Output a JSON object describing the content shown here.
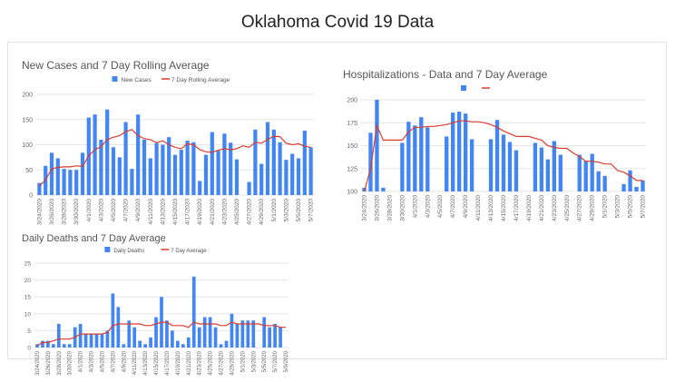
{
  "page": {
    "title": "Oklahoma Covid 19 Data"
  },
  "colors": {
    "bar": "#4285f4",
    "line": "#db3b2e",
    "grid": "#e6e6e6",
    "text": "#555555"
  },
  "chart_data": [
    {
      "id": "cases",
      "type": "bar",
      "title": "New Cases and 7 Day Rolling Average",
      "legend_position": "top",
      "ylim": [
        0,
        200
      ],
      "yticks": [
        0,
        50,
        100,
        150,
        200
      ],
      "grid": true,
      "x": [
        "3/24/2020",
        "3/25/2020",
        "3/26/2020",
        "3/27/2020",
        "3/28/2020",
        "3/29/2020",
        "3/30/2020",
        "3/31/2020",
        "4/1/2020",
        "4/2/2020",
        "4/3/2020",
        "4/4/2020",
        "4/5/2020",
        "4/6/2020",
        "4/7/2020",
        "4/8/2020",
        "4/9/2020",
        "4/10/2020",
        "4/11/2020",
        "4/12/2020",
        "4/13/2020",
        "4/14/2020",
        "4/15/2020",
        "4/16/2020",
        "4/17/2020",
        "4/18/2020",
        "4/19/2020",
        "4/20/2020",
        "4/21/2020",
        "4/22/2020",
        "4/23/2020",
        "4/24/2020",
        "4/25/2020",
        "4/26/2020",
        "4/27/2020",
        "4/28/2020",
        "4/29/2020",
        "4/30/2020",
        "5/1/2020",
        "5/2/2020",
        "5/3/2020",
        "5/4/2020",
        "5/5/2020",
        "5/6/2020",
        "5/7/2020"
      ],
      "tick_labels": [
        "3/24/2020",
        "3/26/2020",
        "3/28/2020",
        "3/30/2020",
        "4/1/2020",
        "4/3/2020",
        "4/5/2020",
        "4/7/2020",
        "4/9/2020",
        "4/11/2020",
        "4/13/2020",
        "4/15/2020",
        "4/17/2020",
        "4/19/2020",
        "4/21/2020",
        "4/23/2020",
        "4/25/2020",
        "4/27/2020",
        "4/29/2020",
        "5/1/2020",
        "5/3/2020",
        "5/5/2020",
        "5/7/2020"
      ],
      "series": [
        {
          "name": "New Cases",
          "type": "bar",
          "values": [
            24,
            58,
            84,
            73,
            52,
            50,
            50,
            84,
            154,
            160,
            110,
            170,
            95,
            75,
            145,
            52,
            160,
            110,
            73,
            103,
            100,
            115,
            80,
            90,
            108,
            105,
            28,
            80,
            125,
            88,
            122,
            104,
            71,
            null,
            26,
            130,
            62,
            145,
            130,
            105,
            70,
            82,
            73,
            128,
            95
          ]
        },
        {
          "name": "7 Day Rolling Average",
          "type": "line",
          "values": [
            18,
            30,
            52,
            55,
            56,
            56,
            58,
            57,
            78,
            90,
            96,
            110,
            115,
            118,
            126,
            130,
            118,
            112,
            110,
            104,
            108,
            100,
            95,
            92,
            102,
            100,
            90,
            86,
            85,
            89,
            92,
            90,
            92,
            98,
            95,
            105,
            103,
            110,
            117,
            116,
            103,
            100,
            102,
            97,
            95
          ]
        }
      ]
    },
    {
      "id": "hosp",
      "type": "bar",
      "title": "Hospitalizations - Data and 7 Day Average",
      "legend_position": "top",
      "ylim": [
        100,
        200
      ],
      "yticks": [
        100,
        125,
        150,
        175,
        200
      ],
      "grid": true,
      "x": [
        "3/24/2020",
        "3/25/2020",
        "3/26/2020",
        "3/27/2020",
        "3/28/2020",
        "3/29/2020",
        "3/30/2020",
        "3/31/2020",
        "4/1/2020",
        "4/2/2020",
        "4/3/2020",
        "4/4/2020",
        "4/5/2020",
        "4/6/2020",
        "4/7/2020",
        "4/8/2020",
        "4/9/2020",
        "4/10/2020",
        "4/11/2020",
        "4/12/2020",
        "4/13/2020",
        "4/14/2020",
        "4/15/2020",
        "4/16/2020",
        "4/17/2020",
        "4/18/2020",
        "4/19/2020",
        "4/20/2020",
        "4/21/2020",
        "4/22/2020",
        "4/23/2020",
        "4/24/2020",
        "4/25/2020",
        "4/26/2020",
        "4/27/2020",
        "4/28/2020",
        "4/29/2020",
        "4/30/2020",
        "5/1/2020",
        "5/2/2020",
        "5/3/2020",
        "5/4/2020",
        "5/5/2020",
        "5/6/2020",
        "5/7/2020"
      ],
      "tick_labels": [
        "3/24/2020",
        "3/26/2020",
        "3/28/2020",
        "3/30/2020",
        "4/1/2020",
        "4/3/2020",
        "4/5/2020",
        "4/7/2020",
        "4/9/2020",
        "4/11/2020",
        "4/13/2020",
        "4/15/2020",
        "4/17/2020",
        "4/19/2020",
        "4/21/2020",
        "4/23/2020",
        "4/25/2020",
        "4/27/2020",
        "4/29/2020",
        "5/1/2020",
        "5/3/2020",
        "5/5/2020",
        "5/7/2020"
      ],
      "series": [
        {
          "name": "",
          "type": "bar",
          "values": [
            104,
            164,
            200,
            104,
            null,
            null,
            153,
            176,
            172,
            181,
            170,
            null,
            null,
            160,
            186,
            187,
            185,
            157,
            null,
            null,
            157,
            178,
            162,
            154,
            145,
            null,
            null,
            153,
            148,
            135,
            155,
            140,
            null,
            null,
            140,
            133,
            141,
            122,
            117,
            null,
            null,
            108,
            123,
            105,
            112
          ]
        },
        {
          "name": "",
          "type": "line",
          "values": [
            100,
            125,
            172,
            156,
            156,
            156,
            156,
            165,
            170,
            170,
            171,
            171,
            172,
            173,
            175,
            177,
            177,
            176,
            176,
            175,
            173,
            170,
            166,
            163,
            160,
            160,
            160,
            158,
            156,
            150,
            148,
            147,
            147,
            142,
            138,
            133,
            133,
            132,
            130,
            130,
            123,
            121,
            117,
            112,
            112
          ]
        }
      ]
    },
    {
      "id": "deaths",
      "type": "bar",
      "title": "Daily Deaths and 7 Day Average",
      "legend_position": "top",
      "ylim": [
        0,
        25
      ],
      "yticks": [
        0,
        5,
        10,
        15,
        20,
        25
      ],
      "grid": true,
      "x": [
        "3/24/2020",
        "3/25/2020",
        "3/26/2020",
        "3/27/2020",
        "3/28/2020",
        "3/29/2020",
        "3/30/2020",
        "3/31/2020",
        "4/1/2020",
        "4/2/2020",
        "4/3/2020",
        "4/4/2020",
        "4/5/2020",
        "4/6/2020",
        "4/7/2020",
        "4/8/2020",
        "4/9/2020",
        "4/10/2020",
        "4/11/2020",
        "4/12/2020",
        "4/13/2020",
        "4/14/2020",
        "4/15/2020",
        "4/16/2020",
        "4/17/2020",
        "4/18/2020",
        "4/19/2020",
        "4/20/2020",
        "4/21/2020",
        "4/22/2020",
        "4/23/2020",
        "4/24/2020",
        "4/25/2020",
        "4/26/2020",
        "4/27/2020",
        "4/28/2020",
        "4/29/2020",
        "4/30/2020",
        "5/1/2020",
        "5/2/2020",
        "5/3/2020",
        "5/4/2020",
        "5/5/2020",
        "5/6/2020",
        "5/7/2020",
        "5/8/2020",
        "5/9/2020"
      ],
      "tick_labels": [
        "3/24/2020",
        "3/26/2020",
        "3/28/2020",
        "3/30/2020",
        "4/1/2020",
        "4/3/2020",
        "4/5/2020",
        "4/7/2020",
        "4/9/2020",
        "4/11/2020",
        "4/13/2020",
        "4/15/2020",
        "4/17/2020",
        "4/19/2020",
        "4/21/2020",
        "4/23/2020",
        "4/25/2020",
        "4/27/2020",
        "4/29/2020",
        "5/1/2020",
        "5/3/2020",
        "5/5/2020",
        "5/7/2020",
        "5/9/2020"
      ],
      "series": [
        {
          "name": "Daily Deaths",
          "type": "bar",
          "values": [
            1,
            2,
            2,
            1,
            7,
            1,
            1,
            6,
            7,
            4,
            4,
            4,
            4,
            5,
            16,
            12,
            1,
            8,
            6,
            2,
            1,
            3,
            9,
            15,
            8,
            5,
            2,
            1,
            3,
            21,
            6,
            9,
            9,
            6,
            1,
            2,
            10,
            7,
            8,
            8,
            8,
            null,
            9,
            6,
            7,
            6,
            null
          ]
        },
        {
          "name": "7 Day Average",
          "type": "line",
          "values": [
            0.5,
            1.5,
            1.5,
            2,
            2.5,
            2.5,
            2.5,
            3,
            4,
            4,
            4,
            4,
            4,
            4.5,
            6.5,
            7,
            7,
            7,
            7,
            7,
            6.5,
            6.5,
            7,
            7.5,
            7.5,
            6.5,
            6.5,
            6.5,
            6,
            7.5,
            7,
            7,
            7,
            7,
            6.5,
            6.5,
            7.5,
            7,
            7,
            7,
            7,
            7,
            6.5,
            6.5,
            6.5,
            6,
            6
          ]
        }
      ]
    }
  ]
}
